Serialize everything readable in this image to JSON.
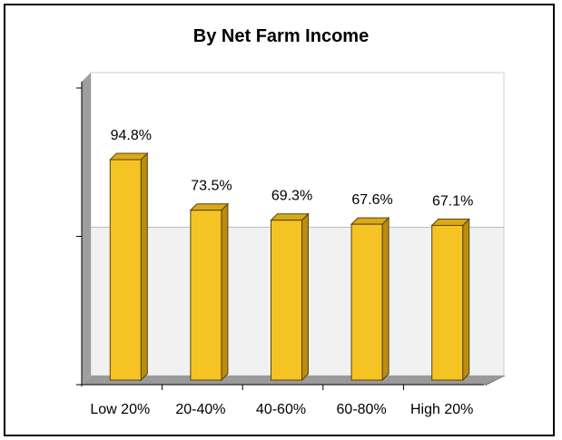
{
  "chart_data": {
    "type": "bar",
    "title": "By Net Farm Income",
    "categories": [
      "Low 20%",
      "20-40%",
      "40-60%",
      "60-80%",
      "High 20%"
    ],
    "values": [
      94.8,
      73.5,
      69.3,
      67.6,
      67.1
    ],
    "data_labels": [
      "94.8%",
      "73.5%",
      "69.3%",
      "67.6%",
      "67.1%"
    ],
    "ylim": [
      0,
      125
    ],
    "grid": true,
    "xlabel": "",
    "ylabel": "",
    "colors": {
      "bar_front": "#F5C324",
      "bar_side": "#B88D12",
      "bar_top": "#D9A91A",
      "floor": "#9A9A9A",
      "back_wall_upper": "#FFFFFF",
      "back_wall_lower": "#F1F1F1",
      "side_wall": "#9E9E9E"
    }
  }
}
